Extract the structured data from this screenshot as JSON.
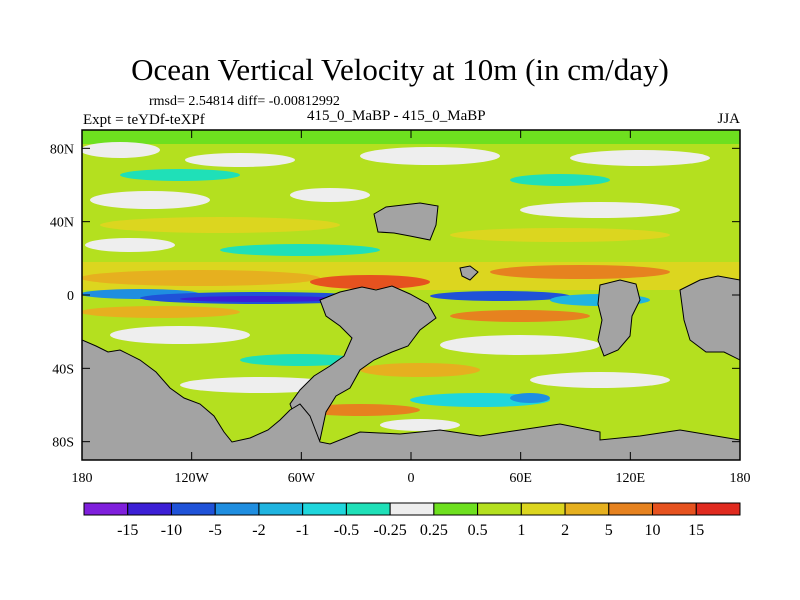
{
  "chart_data": {
    "type": "heatmap",
    "title": "Ocean Vertical Velocity at 10m (in cm/day)",
    "stats_line": "rmsd= 2.54814 diff= -0.00812992",
    "experiment_label": "Expt = teYDf-teXPf",
    "center_label": "415_0_MaBP - 415_0_MaBP",
    "season": "JJA",
    "x_axis": {
      "range": [
        -180,
        180
      ],
      "ticks": [
        {
          "value": -180,
          "label": "180"
        },
        {
          "value": -120,
          "label": "120W"
        },
        {
          "value": -60,
          "label": "60W"
        },
        {
          "value": 0,
          "label": "0"
        },
        {
          "value": 60,
          "label": "60E"
        },
        {
          "value": 120,
          "label": "120E"
        },
        {
          "value": 180,
          "label": "180"
        }
      ]
    },
    "y_axis": {
      "range": [
        -90,
        90
      ],
      "ticks": [
        {
          "value": 80,
          "label": "80N"
        },
        {
          "value": 40,
          "label": "40N"
        },
        {
          "value": 0,
          "label": "0"
        },
        {
          "value": -40,
          "label": "40S"
        },
        {
          "value": -80,
          "label": "80S"
        }
      ]
    },
    "colorbar": {
      "colors": [
        "#7f1fdc",
        "#3c1fd6",
        "#1f52d8",
        "#1f8ee0",
        "#1fb4e0",
        "#1fd6dc",
        "#1fe0b8",
        "#eeeeee",
        "#6ee01f",
        "#b4e01f",
        "#dcd61f",
        "#e6b01f",
        "#e6821f",
        "#e6521f",
        "#e02a1f"
      ],
      "labels": [
        "-15",
        "-10",
        "-5",
        "-2",
        "-1",
        "-0.5",
        "-0.25",
        "0.25",
        "0.5",
        "1",
        "2",
        "5",
        "10",
        "15"
      ]
    }
  }
}
